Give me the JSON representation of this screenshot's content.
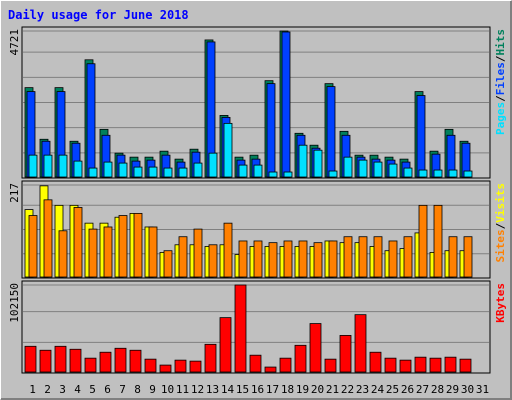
{
  "chart_data": [
    {
      "type": "bar",
      "title": "Daily usage for June 2018",
      "ylim": [
        0,
        4721
      ],
      "yticks": [
        4721
      ],
      "legend_separator": "/",
      "series": [
        {
          "name": "Hits",
          "color": "#00805c",
          "values": [
            2890,
            1220,
            2890,
            1156,
            3790,
            1541,
            771,
            642,
            642,
            835,
            578,
            899,
            4432,
            1991,
            642,
            706,
            3115,
            4721,
            1413,
            1028,
            3019,
            1477,
            706,
            706,
            642,
            578,
            2762,
            835,
            1541,
            1156,
            0
          ]
        },
        {
          "name": "Files",
          "color": "#0040ff",
          "values": [
            2762,
            1156,
            2762,
            1092,
            3662,
            1349,
            707,
            514,
            546,
            707,
            482,
            803,
            4368,
            1927,
            546,
            578,
            3019,
            4689,
            1349,
            931,
            2923,
            1349,
            642,
            578,
            546,
            482,
            2634,
            739,
            1349,
            1092,
            0
          ]
        },
        {
          "name": "Pages",
          "color": "#00e0ff",
          "values": [
            707,
            707,
            707,
            514,
            289,
            482,
            450,
            321,
            321,
            289,
            289,
            450,
            771,
            1734,
            385,
            385,
            161,
            161,
            1028,
            867,
            193,
            642,
            546,
            482,
            418,
            289,
            225,
            225,
            225,
            193,
            0
          ]
        }
      ]
    },
    {
      "type": "bar",
      "ylim": [
        0,
        217
      ],
      "yticks": [
        217
      ],
      "legend_separator": "/",
      "series": [
        {
          "name": "Visits",
          "color": "#ffff00",
          "values": [
            159,
            215,
            169,
            169,
            127,
            127,
            141,
            150,
            118,
            58,
            76,
            76,
            72,
            76,
            53,
            72,
            72,
            72,
            72,
            72,
            85,
            81,
            81,
            72,
            62,
            67,
            104,
            58,
            62,
            62,
            0
          ]
        },
        {
          "name": "Sites",
          "color": "#ff8000",
          "values": [
            145,
            182,
            109,
            164,
            113,
            118,
            145,
            150,
            118,
            62,
            95,
            113,
            76,
            127,
            85,
            85,
            81,
            85,
            85,
            81,
            85,
            95,
            95,
            95,
            85,
            95,
            169,
            169,
            95,
            95,
            0
          ]
        }
      ]
    },
    {
      "type": "bar",
      "ylim": [
        0,
        102150
      ],
      "yticks": [
        102150
      ],
      "categories": [
        "1",
        "2",
        "3",
        "4",
        "5",
        "6",
        "7",
        "8",
        "9",
        "10",
        "11",
        "12",
        "13",
        "14",
        "15",
        "16",
        "17",
        "18",
        "19",
        "20",
        "21",
        "22",
        "23",
        "24",
        "25",
        "26",
        "27",
        "28",
        "29",
        "30",
        "31"
      ],
      "weekend_categories": [
        "2",
        "3",
        "9",
        "10",
        "16",
        "17",
        "23",
        "24",
        "30",
        "31"
      ],
      "weekend_color": "#00805c",
      "weekday_color": "#000000",
      "series": [
        {
          "name": "KBytes",
          "color": "#ff0000",
          "values": [
            30181,
            25538,
            30181,
            26699,
            16251,
            23216,
            27859,
            25538,
            15090,
            8126,
            13930,
            12769,
            32502,
            63844,
            102150,
            19734,
            5804,
            16251,
            31342,
            56879,
            15090,
            42950,
            67326,
            23216,
            16251,
            13930,
            17412,
            16251,
            17412,
            15090,
            0
          ]
        }
      ]
    }
  ]
}
